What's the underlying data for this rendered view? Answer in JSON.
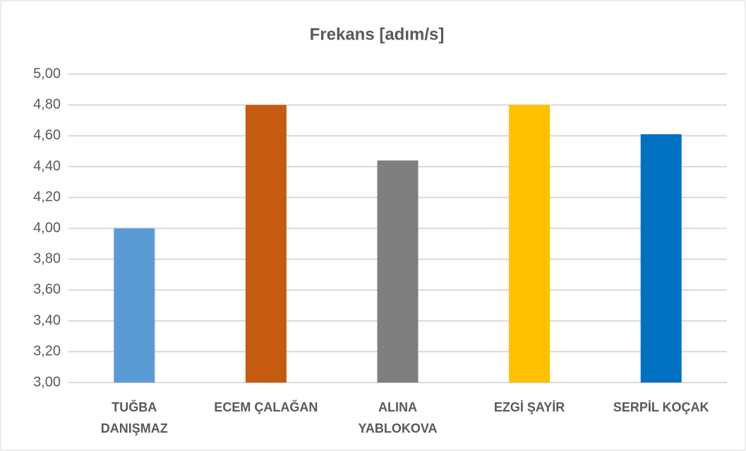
{
  "chart_data": {
    "type": "bar",
    "title": "Frekans [adım/s]",
    "categories": [
      "TUĞBA DANIŞMAZ",
      "ECEM ÇALAĞAN",
      "ALINA YABLOKOVA",
      "EZGİ ŞAYİR",
      "SERPİL KOÇAK"
    ],
    "values": [
      4.0,
      4.8,
      4.44,
      4.8,
      4.61
    ],
    "colors": [
      "#5b9bd5",
      "#c55a11",
      "#7f7f7f",
      "#ffc000",
      "#0070c0"
    ],
    "ylim": [
      3,
      5
    ],
    "yticks": [
      {
        "value": 3,
        "label": "3,00"
      },
      {
        "value": 3.2,
        "label": "3,20"
      },
      {
        "value": 3.4,
        "label": "3,40"
      },
      {
        "value": 3.6,
        "label": "3,60"
      },
      {
        "value": 3.8,
        "label": "3,80"
      },
      {
        "value": 4,
        "label": "4,00"
      },
      {
        "value": 4.2,
        "label": "4,20"
      },
      {
        "value": 4.4,
        "label": "4,40"
      },
      {
        "value": 4.6,
        "label": "4,60"
      },
      {
        "value": 4.8,
        "label": "4,80"
      },
      {
        "value": 5,
        "label": "5,00"
      }
    ],
    "grid": true
  }
}
